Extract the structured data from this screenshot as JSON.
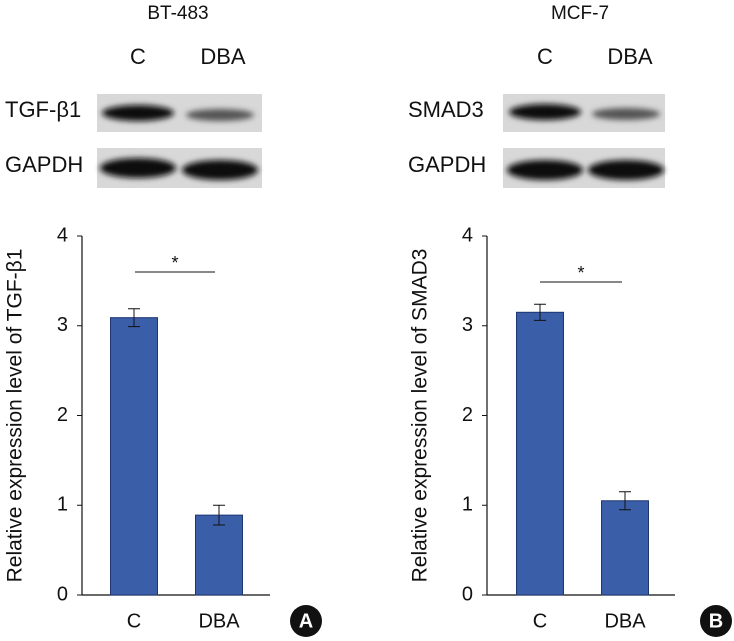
{
  "chart_data": [
    {
      "type": "bar",
      "title": "BT-483",
      "blot_lanes": [
        "C",
        "DBA"
      ],
      "blot_labels": [
        "TGF-β1",
        "GAPDH"
      ],
      "y_label": "Relative expression level of TGF-β1",
      "categories": [
        "C",
        "DBA"
      ],
      "values": [
        3.09,
        0.89
      ],
      "errors": [
        0.1,
        0.11
      ],
      "color": "#3a5ea8",
      "ylim": [
        0,
        4
      ],
      "yticks": [
        0,
        1,
        2,
        3,
        4
      ],
      "annotation": "*",
      "panel_label": "A"
    },
    {
      "type": "bar",
      "title": "MCF-7",
      "blot_lanes": [
        "C",
        "DBA"
      ],
      "blot_labels": [
        "SMAD3",
        "GAPDH"
      ],
      "y_label": "Relative expression level of SMAD3",
      "categories": [
        "C",
        "DBA"
      ],
      "values": [
        3.15,
        1.05
      ],
      "errors": [
        0.09,
        0.1
      ],
      "color": "#3a5ea8",
      "ylim": [
        0,
        4
      ],
      "yticks": [
        0,
        1,
        2,
        3,
        4
      ],
      "annotation": "*",
      "panel_label": "B"
    }
  ]
}
